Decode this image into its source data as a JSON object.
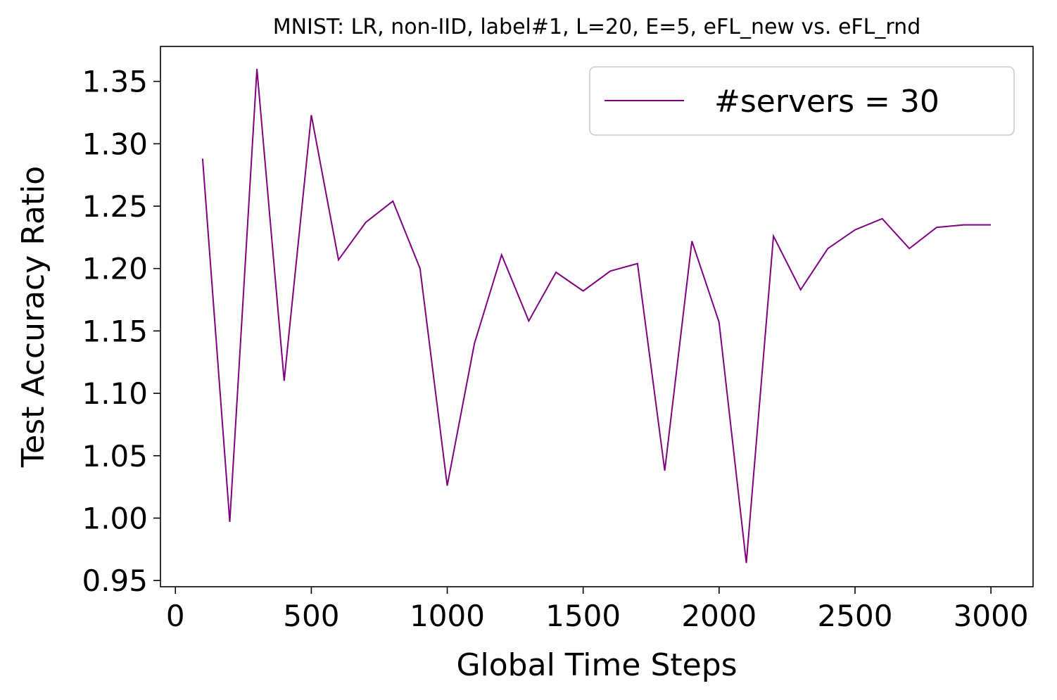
{
  "chart_data": {
    "type": "line",
    "title": "MNIST: LR, non-IID, label#1, L=20, E=5, eFL_new vs. eFL_rnd",
    "xlabel": "Global Time Steps",
    "ylabel": "Test Accuracy Ratio",
    "xlim": [
      -55,
      3155
    ],
    "ylim": [
      0.945,
      1.378
    ],
    "xticks": [
      0,
      500,
      1000,
      1500,
      2000,
      2500,
      3000
    ],
    "xtick_labels": [
      "0",
      "500",
      "1000",
      "1500",
      "2000",
      "2500",
      "3000"
    ],
    "yticks": [
      0.95,
      1.0,
      1.05,
      1.1,
      1.15,
      1.2,
      1.25,
      1.3,
      1.35
    ],
    "ytick_labels": [
      "0.95",
      "1.00",
      "1.05",
      "1.10",
      "1.15",
      "1.20",
      "1.25",
      "1.30",
      "1.35"
    ],
    "grid": false,
    "legend_position": "top-right",
    "series": [
      {
        "name": "#servers = 30",
        "color": "#800080",
        "x": [
          100,
          200,
          300,
          400,
          500,
          600,
          700,
          800,
          900,
          1000,
          1100,
          1200,
          1300,
          1400,
          1500,
          1600,
          1700,
          1800,
          1900,
          2000,
          2100,
          2200,
          2300,
          2400,
          2500,
          2600,
          2700,
          2800,
          2900,
          3000
        ],
        "y": [
          1.288,
          0.997,
          1.36,
          1.11,
          1.323,
          1.207,
          1.237,
          1.254,
          1.2,
          1.026,
          1.14,
          1.211,
          1.158,
          1.197,
          1.182,
          1.198,
          1.204,
          1.038,
          1.222,
          1.157,
          0.964,
          1.226,
          1.183,
          1.216,
          1.231,
          1.24,
          1.216,
          1.233,
          1.235,
          1.235
        ]
      }
    ]
  }
}
